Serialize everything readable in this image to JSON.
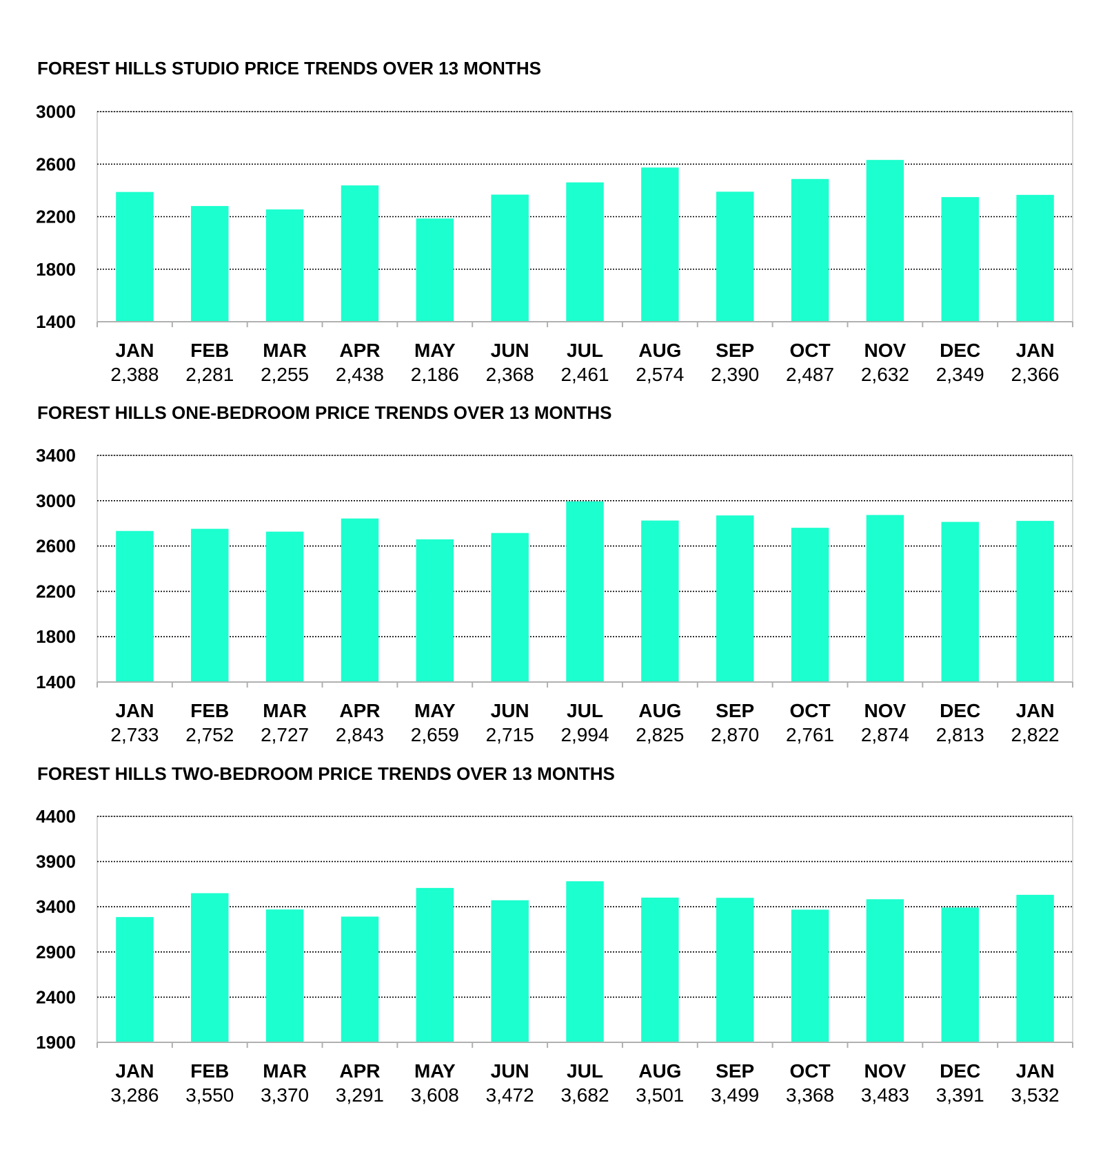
{
  "colors": {
    "bar": "#1cffce",
    "background": "#ffffff"
  },
  "chart_data": [
    {
      "type": "bar",
      "title": "FOREST HILLS STUDIO PRICE TRENDS OVER 13 MONTHS",
      "categories": [
        "JAN",
        "FEB",
        "MAR",
        "APR",
        "MAY",
        "JUN",
        "JUL",
        "AUG",
        "SEP",
        "OCT",
        "NOV",
        "DEC",
        "JAN"
      ],
      "values": [
        2388,
        2281,
        2255,
        2438,
        2186,
        2368,
        2461,
        2574,
        2390,
        2487,
        2632,
        2349,
        2366
      ],
      "value_labels": [
        "2,388",
        "2,281",
        "2,255",
        "2,438",
        "2,186",
        "2,368",
        "2,461",
        "2,574",
        "2,390",
        "2,487",
        "2,632",
        "2,349",
        "2,366"
      ],
      "yticks": [
        1400,
        1800,
        2200,
        2600,
        3000
      ],
      "ylim": [
        1400,
        3000
      ],
      "grid": true
    },
    {
      "type": "bar",
      "title": "FOREST HILLS ONE-BEDROOM PRICE TRENDS OVER 13 MONTHS",
      "categories": [
        "JAN",
        "FEB",
        "MAR",
        "APR",
        "MAY",
        "JUN",
        "JUL",
        "AUG",
        "SEP",
        "OCT",
        "NOV",
        "DEC",
        "JAN"
      ],
      "values": [
        2733,
        2752,
        2727,
        2843,
        2659,
        2715,
        2994,
        2825,
        2870,
        2761,
        2874,
        2813,
        2822
      ],
      "value_labels": [
        "2,733",
        "2,752",
        "2,727",
        "2,843",
        "2,659",
        "2,715",
        "2,994",
        "2,825",
        "2,870",
        "2,761",
        "2,874",
        "2,813",
        "2,822"
      ],
      "yticks": [
        1400,
        1800,
        2200,
        2600,
        3000,
        3400
      ],
      "ylim": [
        1400,
        3400
      ],
      "grid": true
    },
    {
      "type": "bar",
      "title": "FOREST HILLS TWO-BEDROOM PRICE TRENDS OVER 13 MONTHS",
      "categories": [
        "JAN",
        "FEB",
        "MAR",
        "APR",
        "MAY",
        "JUN",
        "JUL",
        "AUG",
        "SEP",
        "OCT",
        "NOV",
        "DEC",
        "JAN"
      ],
      "values": [
        3286,
        3550,
        3370,
        3291,
        3608,
        3472,
        3682,
        3501,
        3499,
        3368,
        3483,
        3391,
        3532
      ],
      "value_labels": [
        "3,286",
        "3,550",
        "3,370",
        "3,291",
        "3,608",
        "3,472",
        "3,682",
        "3,501",
        "3,499",
        "3,368",
        "3,483",
        "3,391",
        "3,532"
      ],
      "yticks": [
        1900,
        2400,
        2900,
        3400,
        3900,
        4400
      ],
      "ylim": [
        1900,
        4400
      ],
      "grid": true
    }
  ]
}
